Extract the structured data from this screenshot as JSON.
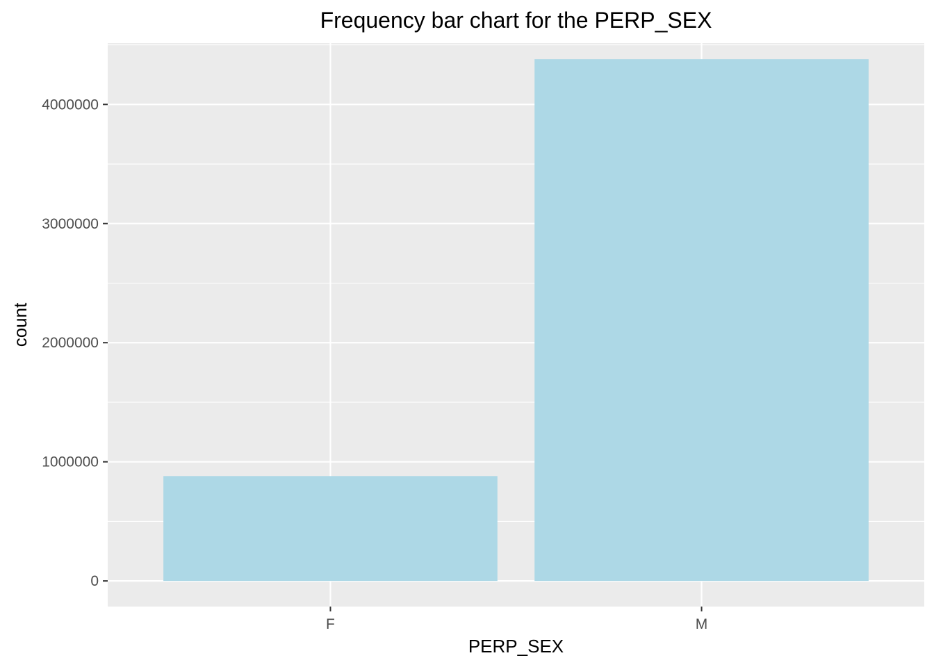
{
  "chart_data": {
    "type": "bar",
    "title": "Frequency bar chart for the PERP_SEX",
    "xlabel": "PERP_SEX",
    "ylabel": "count",
    "categories": [
      "F",
      "M"
    ],
    "values": [
      880000,
      4380000
    ],
    "ylim": [
      -215000,
      4515000
    ],
    "yticks": [
      0,
      1000000,
      2000000,
      3000000,
      4000000
    ],
    "ytick_labels": [
      "0",
      "1000000",
      "2000000",
      "3000000",
      "4000000"
    ],
    "grid": true,
    "legend": "none",
    "colors": {
      "bar": "#add8e6",
      "panel_background": "#ebebeb",
      "grid": "#ffffff",
      "tick_text": "#4d4d4d",
      "tick_mark": "#333333"
    }
  }
}
